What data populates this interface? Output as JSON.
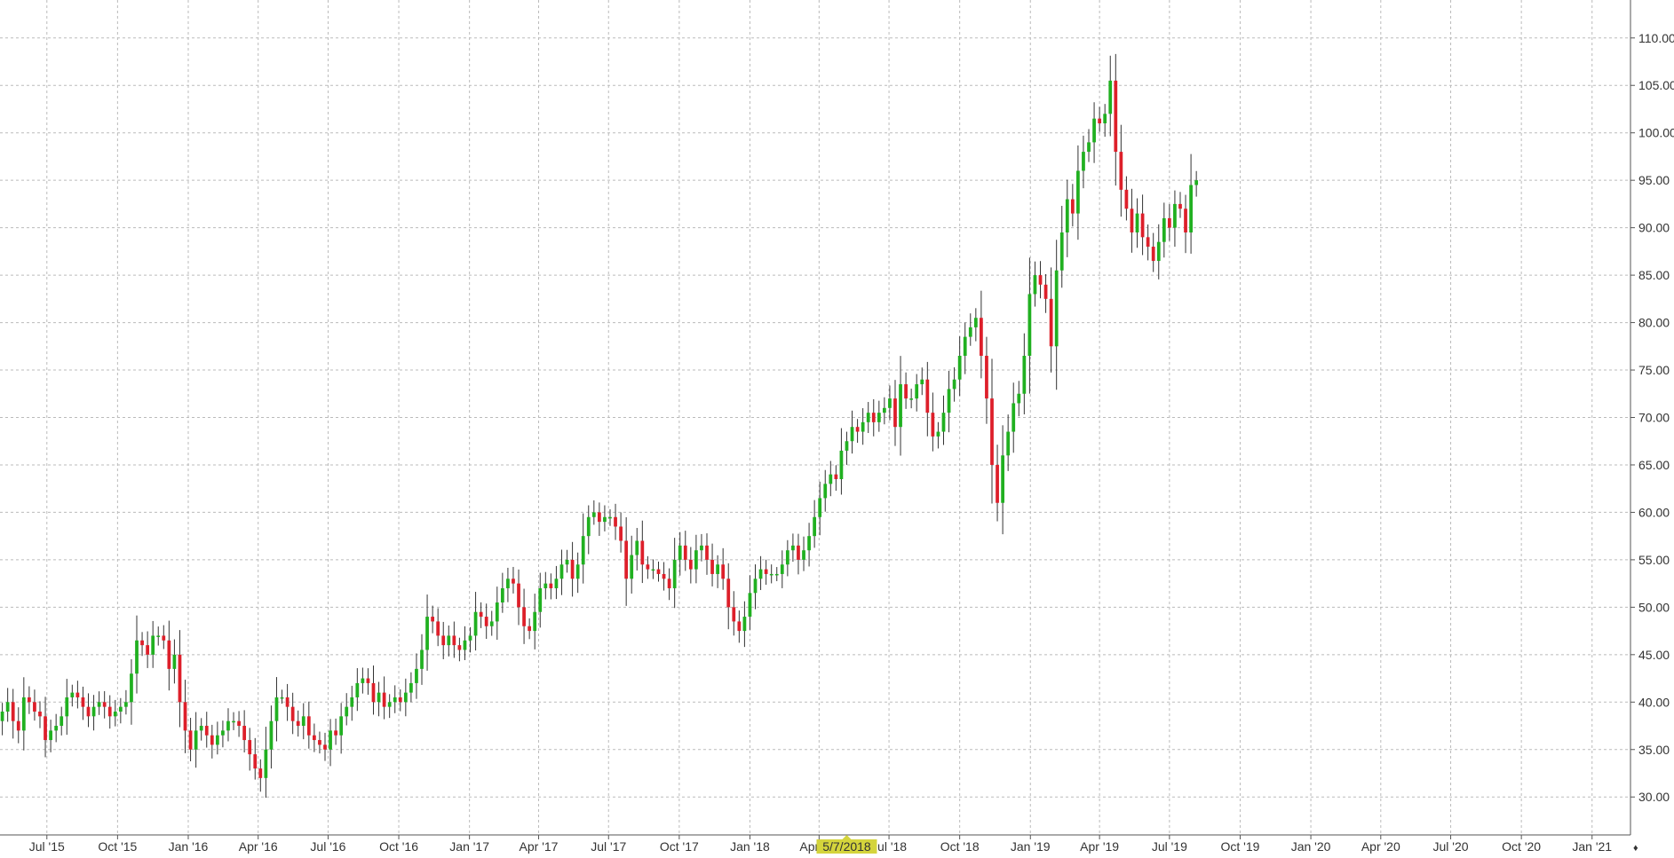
{
  "colors": {
    "up": "#20b020",
    "down": "#dd1f2a",
    "wick": "#333333",
    "grid": "#bbbbbb",
    "axis": "#555555",
    "crosshair_label_bg": "#d4d43c",
    "background": "#ffffff"
  },
  "crosshair": {
    "label": "5/7/2018",
    "date": "2018-05-07"
  },
  "chart_data": {
    "type": "candlestick",
    "interval": "weekly",
    "grid": true,
    "y_axis": {
      "position": "right",
      "range": [
        26,
        114
      ],
      "ticks": [
        "30.00",
        "35.00",
        "40.00",
        "45.00",
        "50.00",
        "55.00",
        "60.00",
        "65.00",
        "70.00",
        "75.00",
        "80.00",
        "85.00",
        "90.00",
        "95.00",
        "100.00",
        "105.00",
        "110.00"
      ]
    },
    "x_axis": {
      "range": [
        "2015-05-01",
        "2021-02-20"
      ],
      "ticks": [
        {
          "label": "Jul '15",
          "date": "2015-07-01"
        },
        {
          "label": "Oct '15",
          "date": "2015-10-01"
        },
        {
          "label": "Jan '16",
          "date": "2016-01-01"
        },
        {
          "label": "Apr '16",
          "date": "2016-04-01"
        },
        {
          "label": "Jul '16",
          "date": "2016-07-01"
        },
        {
          "label": "Oct '16",
          "date": "2016-10-01"
        },
        {
          "label": "Jan '17",
          "date": "2017-01-01"
        },
        {
          "label": "Apr '17",
          "date": "2017-04-01"
        },
        {
          "label": "Jul '17",
          "date": "2017-07-01"
        },
        {
          "label": "Oct '17",
          "date": "2017-10-01"
        },
        {
          "label": "Jan '18",
          "date": "2018-01-01"
        },
        {
          "label": "Apr '18",
          "date": "2018-04-01"
        },
        {
          "label": "Jul '18",
          "date": "2018-07-01"
        },
        {
          "label": "Oct '18",
          "date": "2018-10-01"
        },
        {
          "label": "Jan '19",
          "date": "2019-01-01"
        },
        {
          "label": "Apr '19",
          "date": "2019-04-01"
        },
        {
          "label": "Jul '19",
          "date": "2019-07-01"
        },
        {
          "label": "Oct '19",
          "date": "2019-10-01"
        },
        {
          "label": "Jan '20",
          "date": "2020-01-01"
        },
        {
          "label": "Apr '20",
          "date": "2020-04-01"
        },
        {
          "label": "Jul '20",
          "date": "2020-07-01"
        },
        {
          "label": "Oct '20",
          "date": "2020-10-01"
        },
        {
          "label": "Jan '21",
          "date": "2021-01-01"
        }
      ]
    },
    "start_date": "2015-05-04",
    "closes": [
      39.0,
      40.0,
      38.0,
      37.0,
      40.5,
      40.0,
      39.0,
      38.5,
      36.0,
      37.0,
      37.5,
      38.5,
      40.5,
      41.0,
      40.5,
      39.5,
      38.5,
      39.5,
      40.0,
      39.5,
      38.5,
      39.0,
      39.5,
      40.0,
      43.0,
      46.5,
      46.0,
      45.0,
      47.0,
      47.0,
      46.5,
      43.5,
      45.0,
      40.0,
      37.0,
      35.0,
      37.0,
      37.5,
      36.5,
      35.5,
      36.5,
      37.0,
      38.0,
      38.0,
      37.5,
      36.0,
      34.5,
      33.0,
      32.0,
      35.0,
      38.0,
      40.5,
      40.5,
      39.5,
      38.0,
      37.5,
      38.5,
      36.5,
      36.0,
      35.5,
      35.0,
      37.0,
      36.5,
      38.5,
      39.5,
      40.5,
      42.0,
      42.5,
      42.0,
      40.0,
      41.0,
      39.5,
      40.0,
      40.5,
      40.0,
      41.0,
      42.0,
      43.5,
      45.5,
      49.0,
      48.5,
      47.0,
      46.0,
      47.0,
      46.0,
      45.5,
      46.5,
      47.0,
      49.5,
      49.0,
      48.0,
      48.5,
      50.5,
      52.0,
      53.0,
      52.5,
      50.0,
      48.0,
      47.5,
      49.5,
      52.0,
      52.5,
      52.0,
      53.0,
      54.5,
      55.0,
      53.0,
      54.5,
      57.5,
      59.5,
      60.0,
      59.0,
      59.5,
      59.5,
      58.5,
      57.0,
      53.0,
      55.5,
      57.0,
      54.5,
      54.0,
      54.0,
      53.5,
      53.0,
      52.0,
      55.0,
      56.5,
      55.0,
      54.0,
      56.0,
      56.5,
      55.0,
      53.5,
      54.5,
      53.0,
      50.0,
      48.5,
      47.5,
      49.0,
      51.5,
      53.0,
      54.0,
      53.5,
      53.5,
      53.5,
      54.5,
      56.0,
      56.5,
      55.0,
      56.0,
      57.5,
      59.5,
      61.5,
      63.0,
      64.0,
      63.5,
      66.5,
      67.5,
      69.0,
      68.5,
      69.5,
      70.5,
      69.5,
      70.5,
      71.0,
      72.0,
      69.0,
      73.5,
      72.0,
      72.0,
      73.5,
      74.0,
      70.5,
      68.0,
      68.5,
      70.5,
      73.0,
      74.0,
      76.5,
      78.5,
      79.5,
      80.5,
      76.5,
      72.0,
      65.0,
      61.0,
      66.0,
      68.5,
      71.5,
      72.5,
      76.5,
      83.0,
      85.0,
      84.0,
      82.5,
      77.5,
      85.5,
      89.5,
      93.0,
      91.5,
      96.0,
      98.0,
      99.0,
      101.5,
      101.0,
      102.0,
      105.5,
      98.0,
      94.0,
      92.0,
      89.5,
      91.5,
      89.0,
      88.0,
      86.5,
      88.5,
      91.0,
      90.0,
      92.5,
      92.0,
      89.5,
      94.5,
      95.0
    ]
  }
}
